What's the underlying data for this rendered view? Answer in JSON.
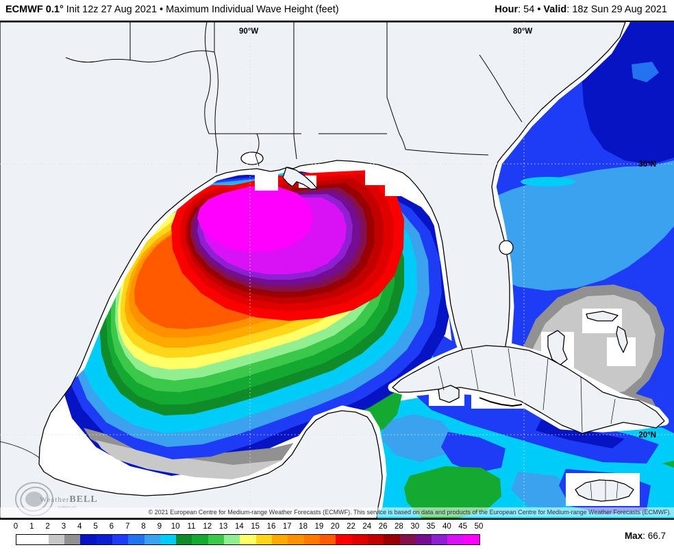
{
  "header": {
    "model": "ECMWF 0.1°",
    "init": "Init 12z 27 Aug 2021",
    "bullet": "•",
    "product": "Maximum Individual Wave Height (feet)",
    "hour_label": "Hour",
    "hour_sep": ": ",
    "hour_value": "54",
    "valid_label": "Valid",
    "valid_sep": ": ",
    "valid_value": "18z Sun 29 Aug 2021"
  },
  "map": {
    "grid_labels": {
      "lon_left": "90°W",
      "lon_right": "80°W",
      "lat_top": "30°N",
      "lat_bottom": "20°N"
    },
    "copyright": "© 2021 European Centre for Medium-range Weather Forecasts (ECMWF). This service is based on data and products of the European Centre for Medium-range Weather Forecasts (ECMWF).",
    "logo": {
      "part1": "Weather",
      "part2": "BELL",
      "sub": "Analytics LLC"
    },
    "land_color": "#eef2f7",
    "coast_color": "#000000"
  },
  "scale": {
    "labels": [
      "0",
      "1",
      "2",
      "3",
      "4",
      "5",
      "6",
      "7",
      "8",
      "9",
      "10",
      "11",
      "12",
      "13",
      "14",
      "15",
      "16",
      "17",
      "18",
      "19",
      "20",
      "22",
      "24",
      "26",
      "28",
      "30",
      "35",
      "40",
      "45",
      "50"
    ],
    "segments": [
      {
        "from": 0,
        "to": 1,
        "color": "#ffffff"
      },
      {
        "from": 1,
        "to": 2,
        "color": "#ffffff"
      },
      {
        "from": 2,
        "to": 3,
        "color": "#c8c8c8"
      },
      {
        "from": 3,
        "to": 4,
        "color": "#919191"
      },
      {
        "from": 4,
        "to": 5,
        "color": "#0714c3"
      },
      {
        "from": 5,
        "to": 6,
        "color": "#0a1ed2"
      },
      {
        "from": 6,
        "to": 7,
        "color": "#1e3cf5"
      },
      {
        "from": 7,
        "to": 8,
        "color": "#2372f0"
      },
      {
        "from": 8,
        "to": 9,
        "color": "#3ba2f0"
      },
      {
        "from": 9,
        "to": 10,
        "color": "#00ccfa"
      },
      {
        "from": 10,
        "to": 11,
        "color": "#0f8c28"
      },
      {
        "from": 11,
        "to": 12,
        "color": "#14aa32"
      },
      {
        "from": 12,
        "to": 13,
        "color": "#3cc84b"
      },
      {
        "from": 13,
        "to": 14,
        "color": "#91ef8f"
      },
      {
        "from": 14,
        "to": 15,
        "color": "#ffff66"
      },
      {
        "from": 15,
        "to": 16,
        "color": "#ffd619"
      },
      {
        "from": 16,
        "to": 17,
        "color": "#ffaa00"
      },
      {
        "from": 17,
        "to": 18,
        "color": "#ff9100"
      },
      {
        "from": 18,
        "to": 19,
        "color": "#ff7800"
      },
      {
        "from": 19,
        "to": 20,
        "color": "#ff5a00"
      },
      {
        "from": 20,
        "to": 22,
        "color": "#fa0000"
      },
      {
        "from": 22,
        "to": 24,
        "color": "#e10000"
      },
      {
        "from": 24,
        "to": 26,
        "color": "#c30000"
      },
      {
        "from": 26,
        "to": 28,
        "color": "#9b0000"
      },
      {
        "from": 28,
        "to": 30,
        "color": "#84104e"
      },
      {
        "from": 30,
        "to": 35,
        "color": "#750d91"
      },
      {
        "from": 35,
        "to": 40,
        "color": "#8f1fd2"
      },
      {
        "from": 40,
        "to": 45,
        "color": "#d911f5"
      },
      {
        "from": 45,
        "to": 50,
        "color": "#ff00ff"
      }
    ]
  },
  "max": {
    "label": "Max",
    "sep": ": ",
    "value": "66.7"
  }
}
